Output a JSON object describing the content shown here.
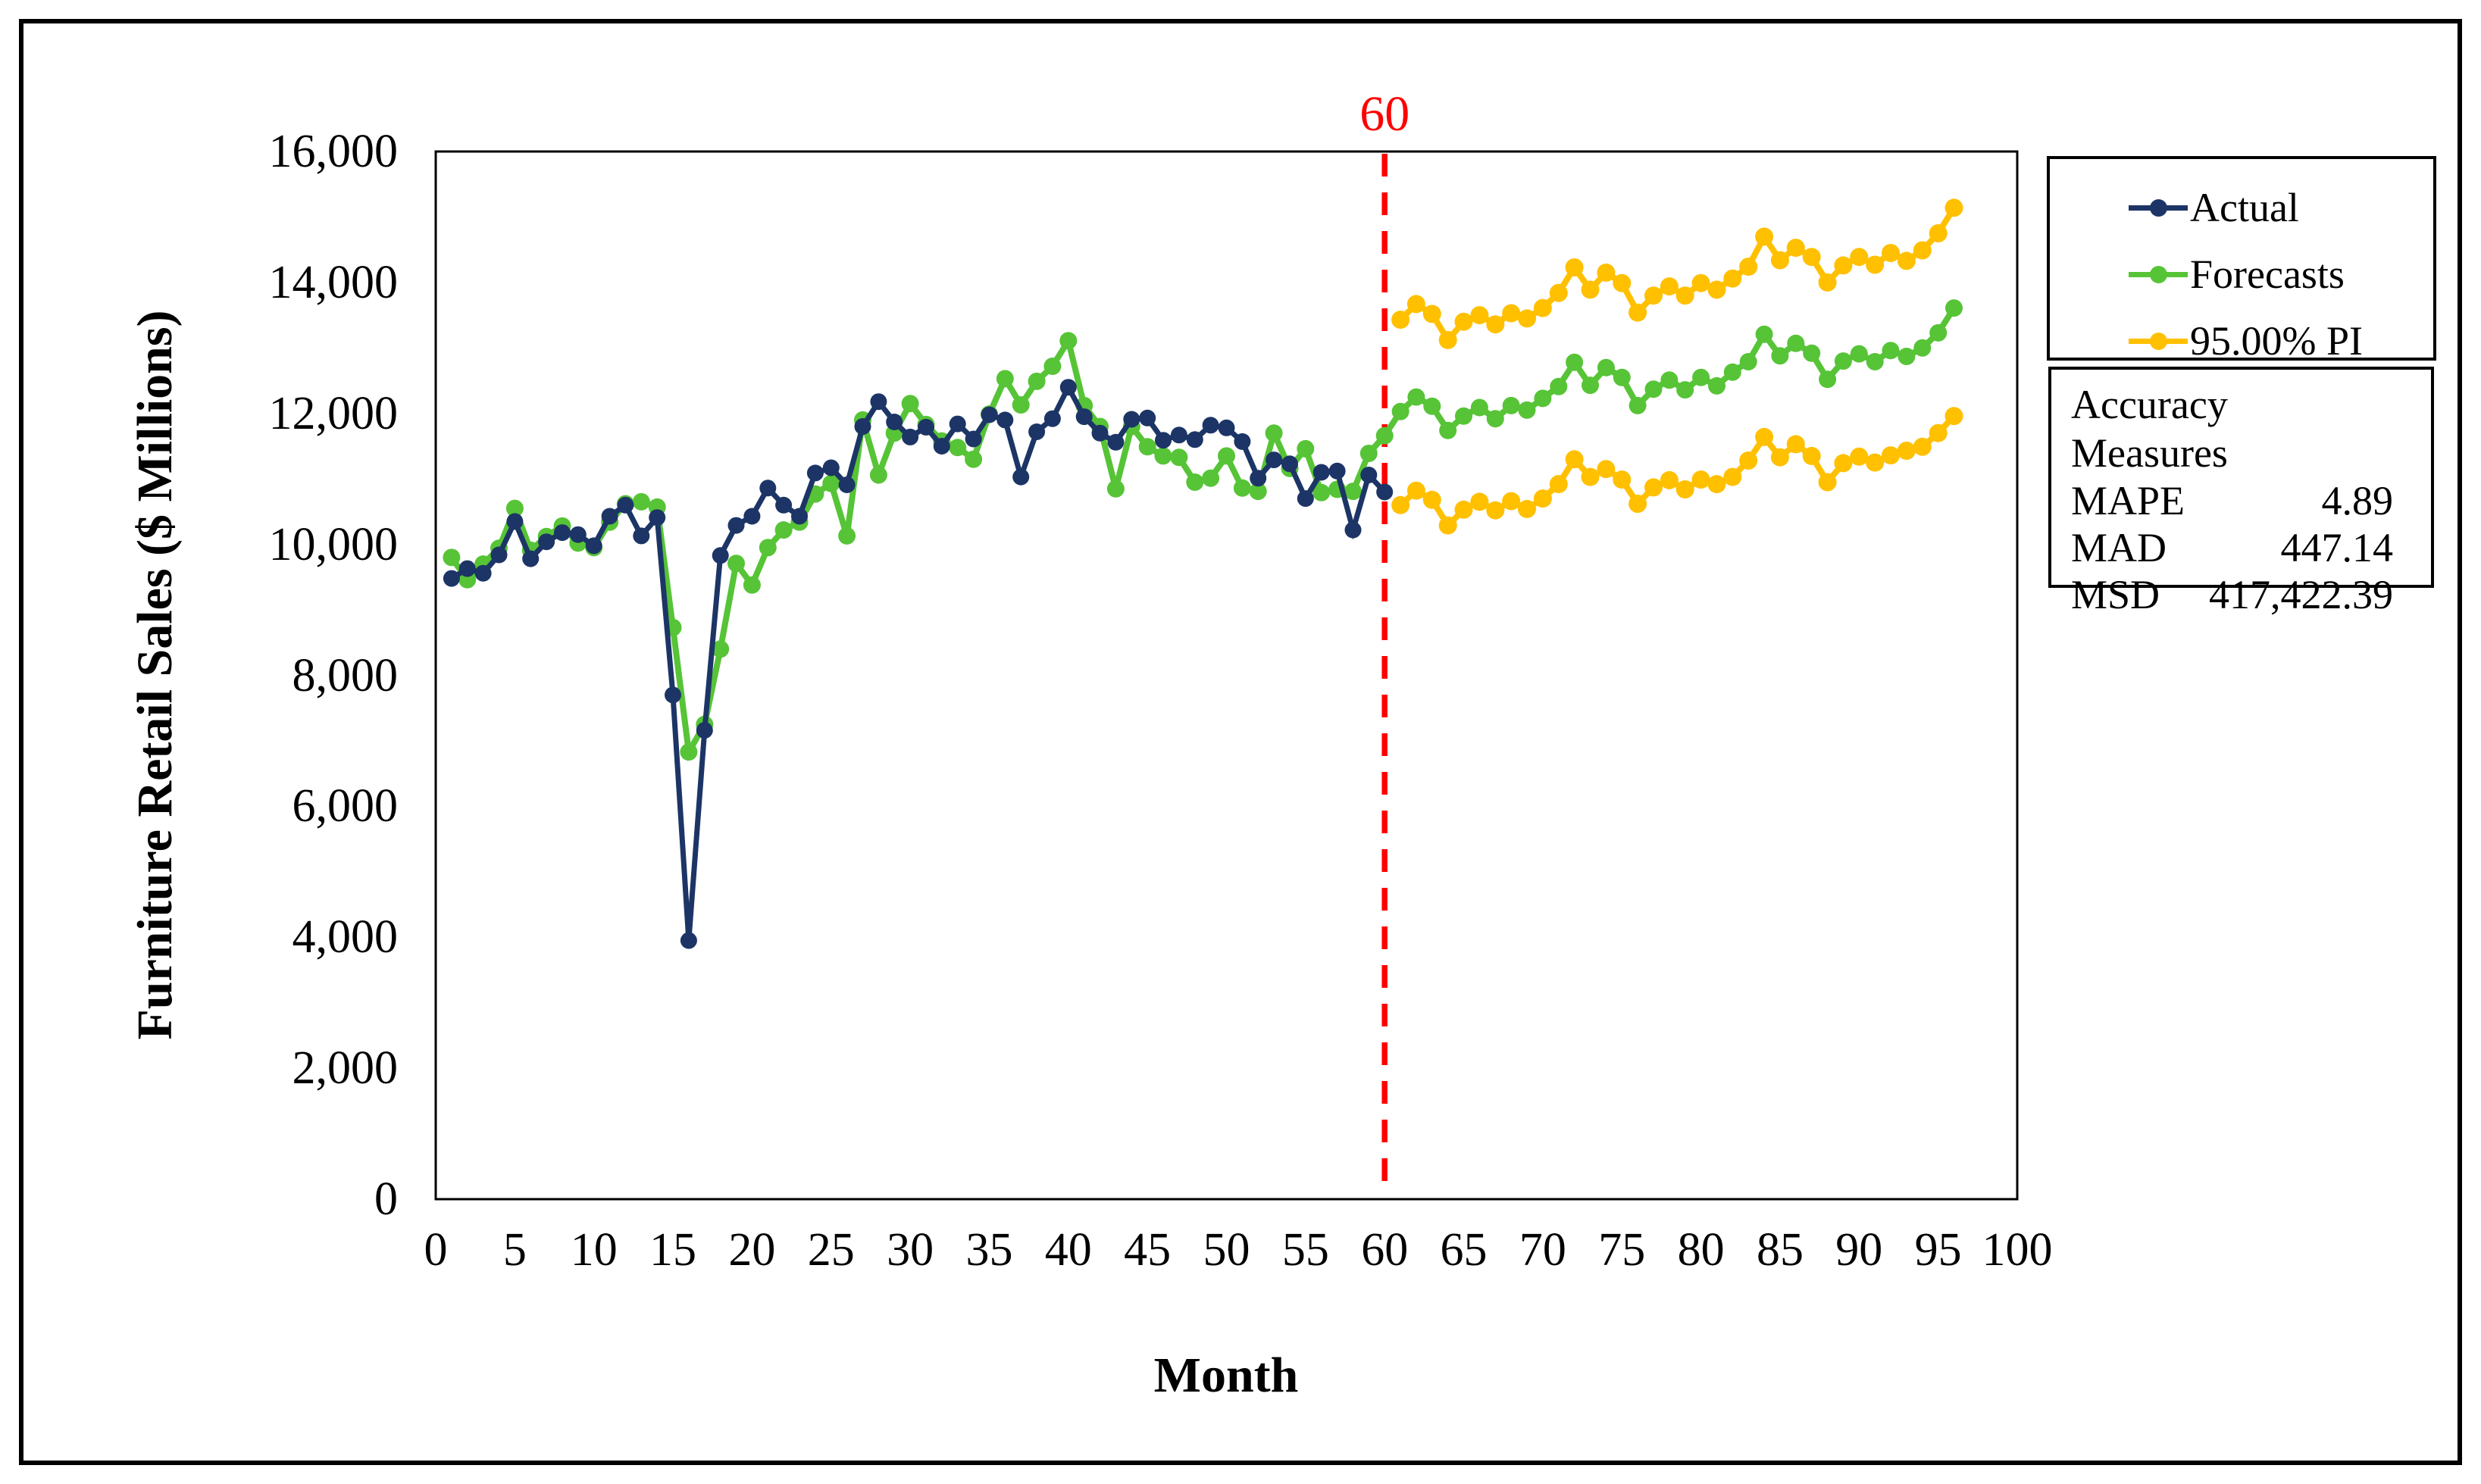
{
  "figure": {
    "xlabel": "Month",
    "ylabel": "Furniture Retail Sales ($ Millions)"
  },
  "legend": {
    "items": [
      {
        "label": "Actual",
        "color": "#1c3566"
      },
      {
        "label": "Forecasts",
        "color": "#56c436"
      },
      {
        "label": "95.00% PI",
        "color": "#ffc000"
      }
    ]
  },
  "accuracy": {
    "title": "Accuracy Measures",
    "rows": [
      {
        "label": "MAPE",
        "value": "4.89"
      },
      {
        "label": "MAD",
        "value": "447.14"
      },
      {
        "label": "MSD",
        "value": "417,422.39"
      }
    ]
  },
  "chart_data": {
    "type": "line",
    "title": "",
    "xlabel": "Month",
    "ylabel": "Furniture Retail Sales ($ Millions)",
    "xlim": [
      0,
      100
    ],
    "ylim": [
      0,
      16000
    ],
    "grid": false,
    "legend_position": "right-outside",
    "x_ticks": [
      0,
      5,
      10,
      15,
      20,
      25,
      30,
      35,
      40,
      45,
      50,
      55,
      60,
      65,
      70,
      75,
      80,
      85,
      90,
      95,
      100
    ],
    "y_ticks": [
      {
        "value": 0,
        "label": "0"
      },
      {
        "value": 2000,
        "label": "2,000"
      },
      {
        "value": 4000,
        "label": "4,000"
      },
      {
        "value": 6000,
        "label": "6,000"
      },
      {
        "value": 8000,
        "label": "8,000"
      },
      {
        "value": 10000,
        "label": "10,000"
      },
      {
        "value": 12000,
        "label": "12,000"
      },
      {
        "value": 14000,
        "label": "14,000"
      },
      {
        "value": 16000,
        "label": "16,000"
      }
    ],
    "vline": {
      "x": 60,
      "label": "60",
      "color": "#ff0000",
      "style": "dashed"
    },
    "series": [
      {
        "name": "Forecasts",
        "color": "#56c436",
        "marker_r": 11.5,
        "stroke_width": 8,
        "start_x": 1,
        "values": [
          9800,
          9460,
          9700,
          9940,
          10550,
          9910,
          10120,
          10280,
          10020,
          9950,
          10340,
          10620,
          10650,
          10570,
          8730,
          6830,
          7250,
          8400,
          9710,
          9380,
          9950,
          10220,
          10340,
          10770,
          10930,
          10130,
          11900,
          11060,
          11700,
          12150,
          11830,
          11580,
          11480,
          11300,
          11990,
          12530,
          12130,
          12490,
          12720,
          13110,
          12120,
          11800,
          10850,
          11800,
          11490,
          11350,
          11330,
          10950,
          11010,
          11350,
          10860,
          10810,
          11700,
          11160,
          11460,
          10790,
          10840,
          10810,
          11390,
          11660,
          12030,
          12250,
          12110,
          11740,
          11960,
          12090,
          11920,
          12120,
          12050,
          12230,
          12410,
          12780,
          12430,
          12700,
          12550,
          12120,
          12370,
          12510,
          12360,
          12550,
          12420,
          12630,
          12790,
          13210,
          12880,
          13070,
          12920,
          12520,
          12800,
          12910,
          12790,
          12960,
          12870,
          13000,
          13230,
          13610
        ]
      },
      {
        "name": "Actual",
        "color": "#1c3566",
        "marker_r": 11,
        "stroke_width": 7,
        "start_x": 1,
        "values": [
          9480,
          9630,
          9560,
          9840,
          10350,
          9780,
          10040,
          10180,
          10150,
          9980,
          10430,
          10600,
          10130,
          10410,
          7700,
          3950,
          7160,
          9830,
          10290,
          10430,
          10860,
          10600,
          10430,
          11090,
          11170,
          10910,
          11800,
          12180,
          11870,
          11640,
          11790,
          11500,
          11840,
          11610,
          11980,
          11900,
          11030,
          11720,
          11920,
          12400,
          11950,
          11700,
          11560,
          11910,
          11930,
          11590,
          11670,
          11600,
          11820,
          11780,
          11570,
          11010,
          11290,
          11230,
          10700,
          11100,
          11120,
          10220,
          11060,
          10800
        ]
      },
      {
        "name": "95.00% PI upper",
        "color": "#ffc000",
        "marker_r": 12,
        "stroke_width": 8,
        "start_x": 61,
        "values": [
          13430,
          13670,
          13520,
          13120,
          13400,
          13500,
          13360,
          13530,
          13450,
          13610,
          13840,
          14230,
          13890,
          14150,
          13990,
          13540,
          13800,
          13940,
          13800,
          13990,
          13890,
          14060,
          14240,
          14700,
          14340,
          14530,
          14390,
          14000,
          14260,
          14390,
          14270,
          14450,
          14330,
          14490,
          14750,
          15140
        ]
      },
      {
        "name": "95.00% PI lower",
        "color": "#ffc000",
        "marker_r": 12,
        "stroke_width": 8,
        "start_x": 61,
        "values": [
          10600,
          10820,
          10680,
          10290,
          10530,
          10650,
          10520,
          10660,
          10540,
          10700,
          10920,
          11300,
          11030,
          11150,
          10990,
          10620,
          10870,
          10980,
          10840,
          10990,
          10920,
          11030,
          11280,
          11640,
          11330,
          11530,
          11350,
          10950,
          11240,
          11340,
          11250,
          11360,
          11430,
          11490,
          11700,
          11960
        ]
      }
    ],
    "accuracy_measures": {
      "MAPE": 4.89,
      "MAD": 447.14,
      "MSD": 417422.39
    }
  }
}
